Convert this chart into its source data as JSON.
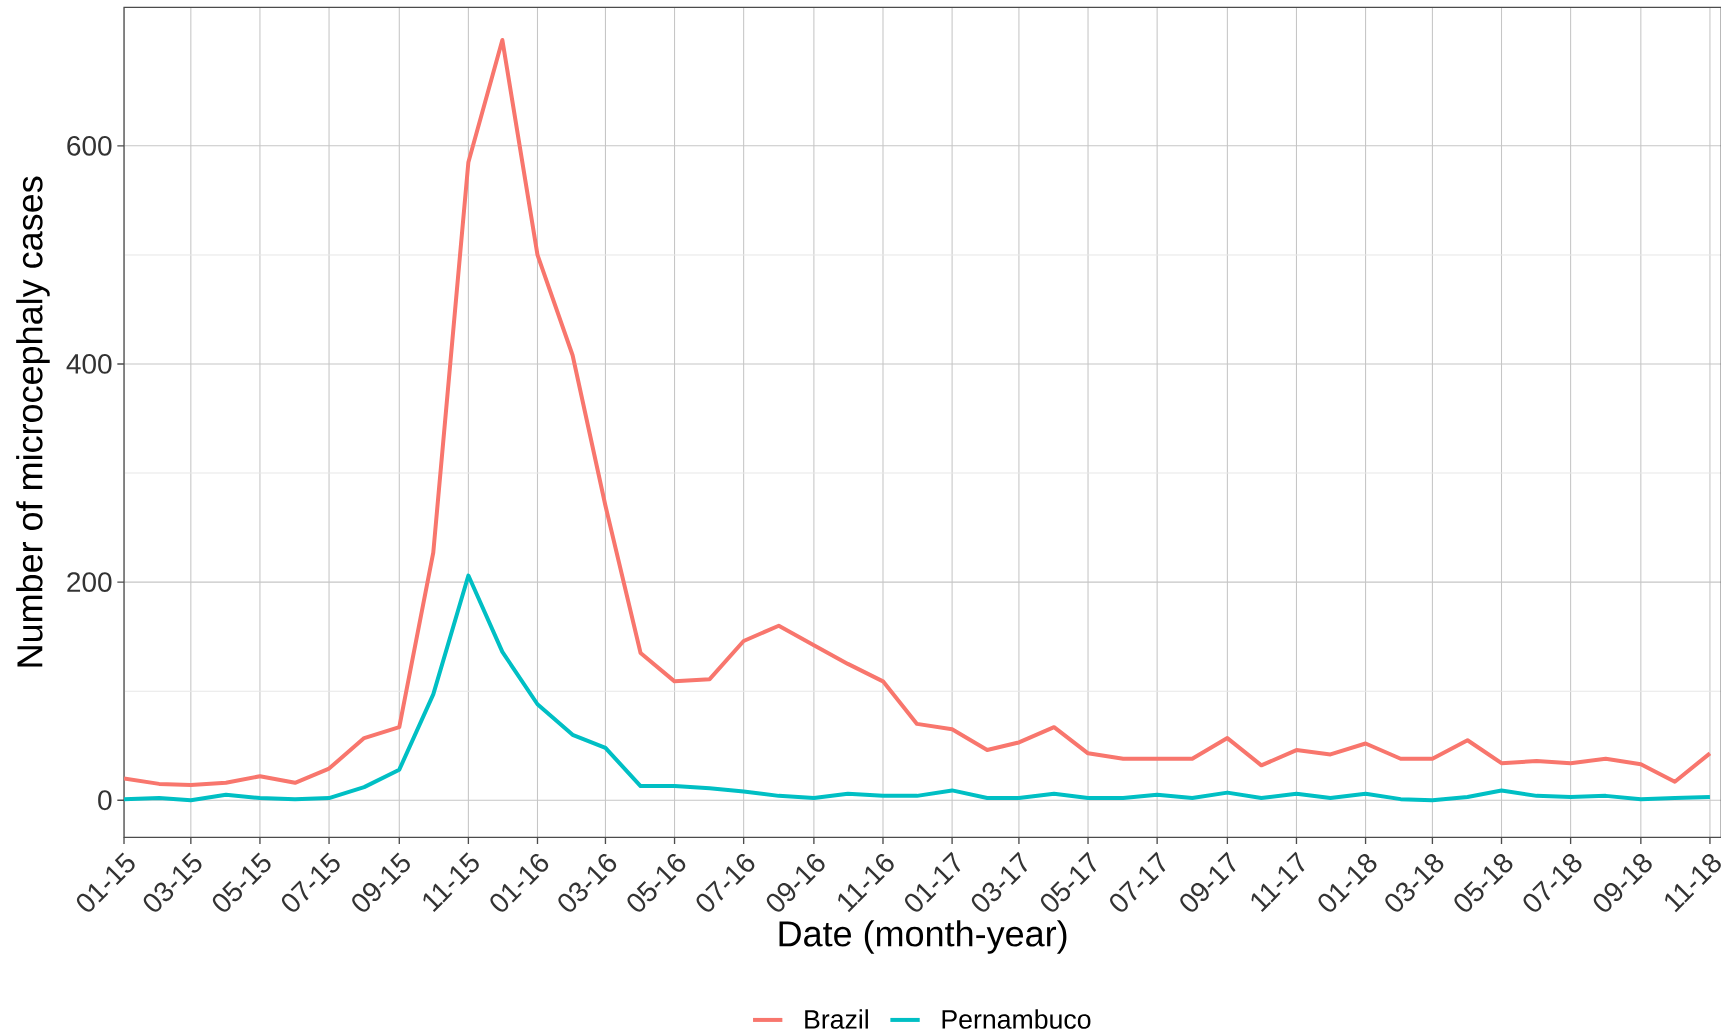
{
  "chart_data": {
    "type": "line",
    "xlabel": "Date (month-year)",
    "ylabel": "Number of microcephaly cases",
    "x": [
      "2015-01",
      "2015-02",
      "2015-03",
      "2015-04",
      "2015-05",
      "2015-06",
      "2015-07",
      "2015-08",
      "2015-09",
      "2015-10",
      "2015-11",
      "2015-12",
      "2016-01",
      "2016-02",
      "2016-03",
      "2016-04",
      "2016-05",
      "2016-06",
      "2016-07",
      "2016-08",
      "2016-09",
      "2016-10",
      "2016-11",
      "2016-12",
      "2017-01",
      "2017-02",
      "2017-03",
      "2017-04",
      "2017-05",
      "2017-06",
      "2017-07",
      "2017-08",
      "2017-09",
      "2017-10",
      "2017-11",
      "2017-12",
      "2018-01",
      "2018-02",
      "2018-03",
      "2018-04",
      "2018-05",
      "2018-06",
      "2018-07",
      "2018-08",
      "2018-09",
      "2018-10",
      "2018-11"
    ],
    "series": [
      {
        "name": "Brazil",
        "color": "#f8766d",
        "values": [
          20,
          15,
          14,
          16,
          22,
          16,
          29,
          57,
          67,
          227,
          585,
          697,
          500,
          408,
          270,
          135,
          109,
          111,
          146,
          160,
          142,
          125,
          109,
          70,
          65,
          46,
          53,
          67,
          43,
          38,
          38,
          38,
          57,
          32,
          46,
          42,
          52,
          38,
          38,
          55,
          34,
          36,
          34,
          38,
          33,
          17,
          43
        ]
      },
      {
        "name": "Pernambuco",
        "color": "#00bfc4",
        "values": [
          1,
          2,
          0,
          5,
          2,
          1,
          2,
          12,
          28,
          97,
          206,
          136,
          88,
          60,
          48,
          13,
          13,
          11,
          8,
          4,
          2,
          6,
          4,
          4,
          9,
          2,
          2,
          6,
          2,
          2,
          5,
          2,
          7,
          2,
          6,
          2,
          6,
          1,
          0,
          3,
          9,
          4,
          3,
          4,
          1,
          2,
          3
        ]
      }
    ],
    "xlim": [
      "2015-01",
      "2018-11-11"
    ],
    "ylim": [
      -34,
      727
    ],
    "xticks": [
      {
        "value": "2015-01",
        "label": "01-15"
      },
      {
        "value": "2015-03",
        "label": "03-15"
      },
      {
        "value": "2015-05",
        "label": "05-15"
      },
      {
        "value": "2015-07",
        "label": "07-15"
      },
      {
        "value": "2015-09",
        "label": "09-15"
      },
      {
        "value": "2015-11",
        "label": "11-15"
      },
      {
        "value": "2016-01",
        "label": "01-16"
      },
      {
        "value": "2016-03",
        "label": "03-16"
      },
      {
        "value": "2016-05",
        "label": "05-16"
      },
      {
        "value": "2016-07",
        "label": "07-16"
      },
      {
        "value": "2016-09",
        "label": "09-16"
      },
      {
        "value": "2016-11",
        "label": "11-16"
      },
      {
        "value": "2017-01",
        "label": "01-17"
      },
      {
        "value": "2017-03",
        "label": "03-17"
      },
      {
        "value": "2017-05",
        "label": "05-17"
      },
      {
        "value": "2017-07",
        "label": "07-17"
      },
      {
        "value": "2017-09",
        "label": "09-17"
      },
      {
        "value": "2017-11",
        "label": "11-17"
      },
      {
        "value": "2018-01",
        "label": "01-18"
      },
      {
        "value": "2018-03",
        "label": "03-18"
      },
      {
        "value": "2018-05",
        "label": "05-18"
      },
      {
        "value": "2018-07",
        "label": "07-18"
      },
      {
        "value": "2018-09",
        "label": "09-18"
      },
      {
        "value": "2018-11",
        "label": "11-18"
      }
    ],
    "yticks": [
      0,
      200,
      400,
      600
    ],
    "grid": true,
    "legend": "bottom",
    "marker": "none",
    "line_style": "solid"
  }
}
